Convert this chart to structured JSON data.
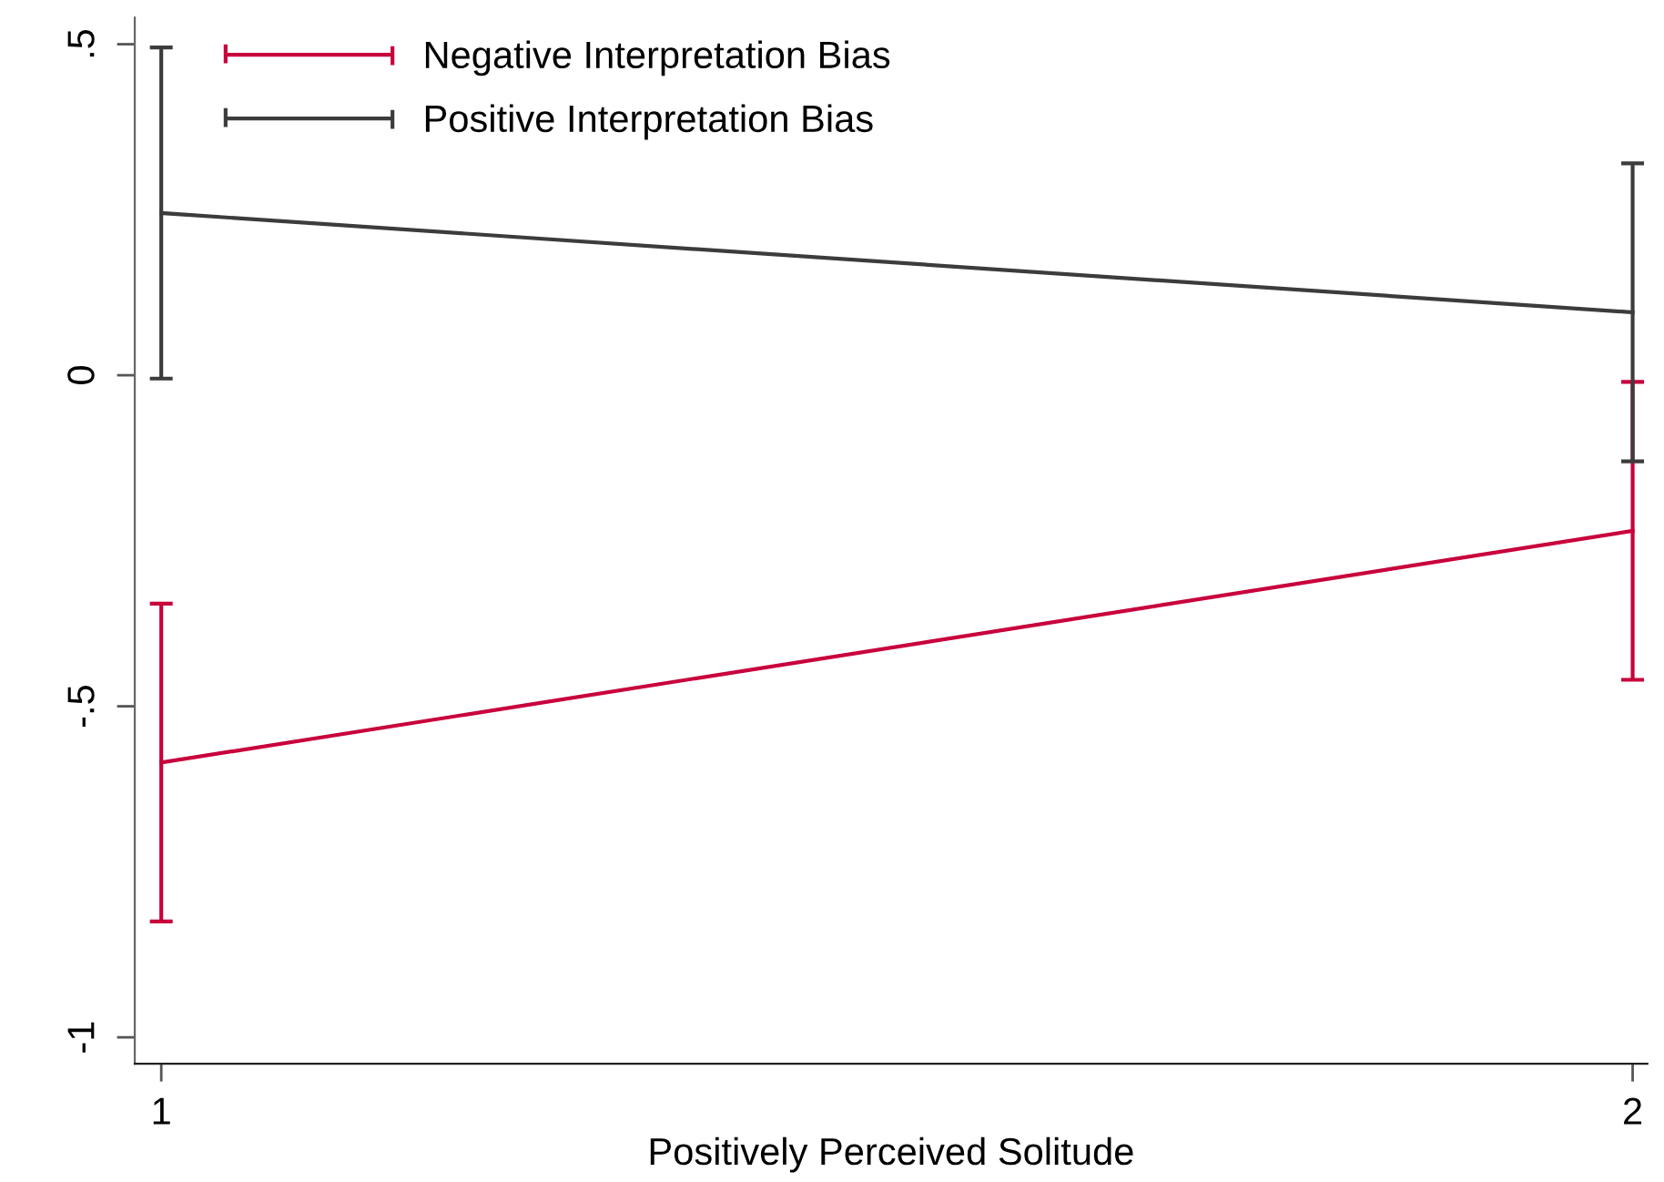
{
  "chart_data": {
    "type": "line",
    "xlabel": "Positively Perceived Solitude",
    "x": [
      1,
      2
    ],
    "xlim": [
      0.982,
      2.01
    ],
    "xticks": [
      1,
      2
    ],
    "ylim": [
      -1.04,
      0.54
    ],
    "yticks": [
      -1,
      {
        "value": -0.5,
        "label": "-.5"
      },
      0,
      {
        "value": 0.5,
        "label": ".5"
      }
    ],
    "series": [
      {
        "name": "Negative Interpretation Bias",
        "color": "#c8003c",
        "values": [
          -0.585,
          -0.235
        ],
        "errors": [
          0.24,
          0.225
        ]
      },
      {
        "name": "Positive Interpretation Bias",
        "color": "#3c3c3c",
        "values": [
          0.245,
          0.095
        ],
        "errors": [
          0.25,
          0.225
        ]
      }
    ],
    "legend": "top left",
    "grid": false,
    "marker": "none",
    "line_style": "solid"
  }
}
